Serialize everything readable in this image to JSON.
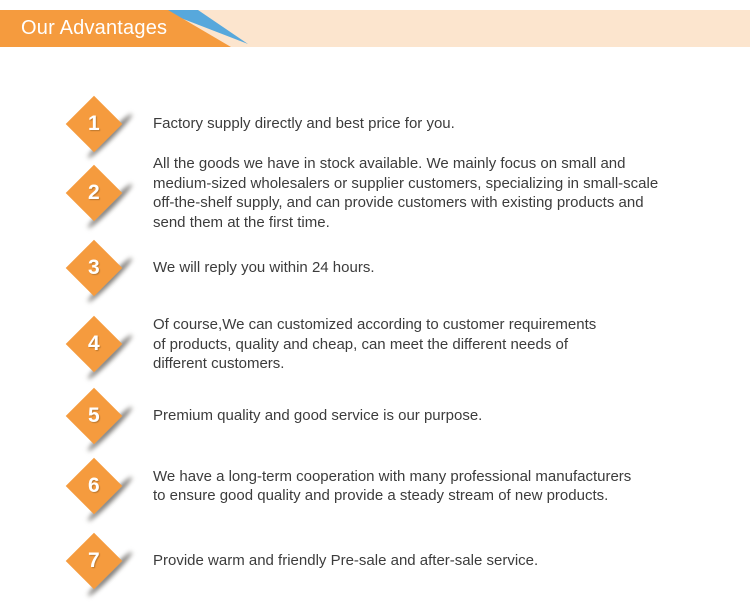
{
  "header": {
    "title": "Our Advantages"
  },
  "colors": {
    "banner_orange": "#f59b3e",
    "banner_peach": "#fce5ce",
    "banner_blue": "#57a8dc",
    "diamond_orange": "#f59b3e",
    "body_text": "#3c3c3c",
    "banner_text": "#ffffff"
  },
  "advantages": [
    {
      "number": "1",
      "text": "Factory supply directly and best price for you."
    },
    {
      "number": "2",
      "text": "All the goods we have in stock available. We mainly focus on small and\nmedium-sized wholesalers or supplier customers, specializing in small-scale\noff-the-shelf supply, and can provide customers with existing products and\nsend them at the first time."
    },
    {
      "number": "3",
      "text": "We will reply you within 24 hours."
    },
    {
      "number": "4",
      "text": "Of course,We can customized according to customer requirements\nof products, quality and cheap, can meet the different needs of\ndifferent customers."
    },
    {
      "number": "5",
      "text": "Premium quality and good service is our purpose."
    },
    {
      "number": "6",
      "text": "We have a long-term cooperation with many professional manufacturers\nto ensure good quality and provide a steady stream of new products."
    },
    {
      "number": "7",
      "text": "Provide warm and friendly Pre-sale and after-sale service."
    }
  ]
}
